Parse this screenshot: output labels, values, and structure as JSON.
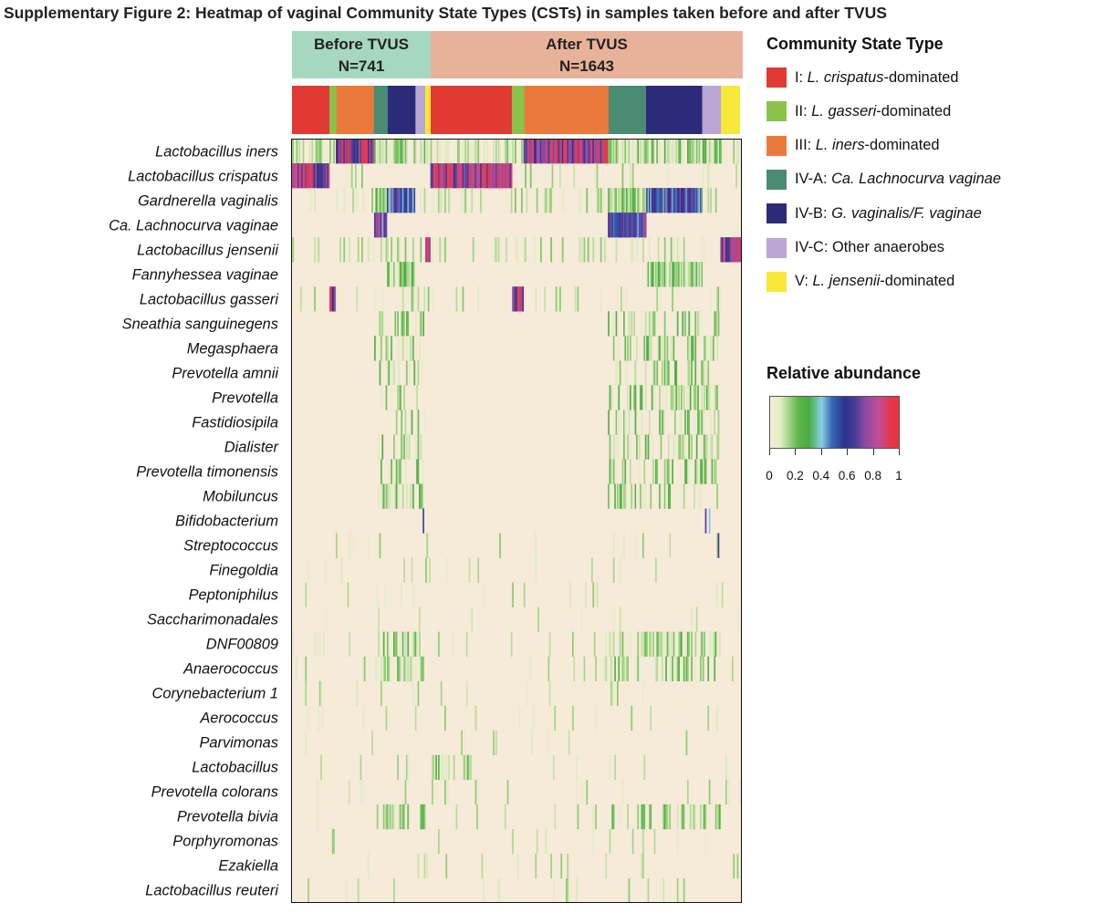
{
  "title": "Supplementary Figure 2: Heatmap of vaginal Community State Types (CSTs) in samples taken before and after TVUS",
  "groups": {
    "before": {
      "label": "Before TVUS",
      "n": "N=741",
      "color": "#a6d7bf"
    },
    "after": {
      "label": "After TVUS",
      "n": "N=1643",
      "color": "#e8b29a"
    }
  },
  "legend": {
    "title": "Community State Type",
    "items": [
      {
        "id": "I",
        "prefix": "I: ",
        "italic": "L. crispatus",
        "suffix": "-dominated",
        "color": "#e03a33"
      },
      {
        "id": "II",
        "prefix": "II: ",
        "italic": "L. gasseri",
        "suffix": "-dominated",
        "color": "#8bc34a"
      },
      {
        "id": "III",
        "prefix": "III: ",
        "italic": "L. iners",
        "suffix": "-dominated",
        "color": "#ea7a3b"
      },
      {
        "id": "IV-A",
        "prefix": "IV-A: ",
        "italic": "Ca. Lachnocurva vaginae",
        "suffix": "",
        "color": "#4c8b73"
      },
      {
        "id": "IV-B",
        "prefix": "IV-B: ",
        "italic": "G. vaginalis/F. vaginae",
        "suffix": "",
        "color": "#2c2b7a"
      },
      {
        "id": "IV-C",
        "prefix": "IV-C: ",
        "italic": "",
        "suffix": "Other anaerobes",
        "color": "#b9a6d4"
      },
      {
        "id": "V",
        "prefix": "V: ",
        "italic": "L. jensenii",
        "suffix": "-dominated",
        "color": "#f7e83a"
      }
    ]
  },
  "colorbar": {
    "title": "Relative abundance",
    "tick_labels": [
      "0",
      "0.2",
      "0.4",
      "0.6",
      "0.8",
      "1"
    ]
  },
  "chart_data": {
    "type": "heatmap",
    "x_axis": "samples (grouped by TVUS timing, ordered by CST)",
    "value_range": [
      0,
      1
    ],
    "taxa": [
      "Lactobacillus iners",
      "Lactobacillus crispatus",
      "Gardnerella vaginalis",
      "Ca. Lachnocurva vaginae",
      "Lactobacillus jensenii",
      "Fannyhessea vaginae",
      "Lactobacillus gasseri",
      "Sneathia sanguinegens",
      "Megasphaera",
      "Prevotella amnii",
      "Prevotella",
      "Fastidiosipila",
      "Dialister",
      "Prevotella timonensis",
      "Mobiluncus",
      "Bifidobacterium",
      "Streptococcus",
      "Finegoldia",
      "Peptoniphilus",
      "Saccharimonadales",
      "DNF00809",
      "Anaerococcus",
      "Corynebacterium 1",
      "Aerococcus",
      "Parvimonas",
      "Lactobacillus",
      "Prevotella colorans",
      "Prevotella bivia",
      "Porphyromonas",
      "Ezakiella",
      "Lactobacillus reuteri"
    ],
    "groups": [
      {
        "name": "Before TVUS",
        "n": 741,
        "cst_blocks": [
          {
            "cst": "I",
            "fraction": 0.27
          },
          {
            "cst": "II",
            "fraction": 0.05
          },
          {
            "cst": "III",
            "fraction": 0.27
          },
          {
            "cst": "IV-A",
            "fraction": 0.1
          },
          {
            "cst": "IV-B",
            "fraction": 0.2
          },
          {
            "cst": "IV-C",
            "fraction": 0.07
          },
          {
            "cst": "V",
            "fraction": 0.04
          }
        ]
      },
      {
        "name": "After TVUS",
        "n": 1643,
        "cst_blocks": [
          {
            "cst": "I",
            "fraction": 0.26
          },
          {
            "cst": "II",
            "fraction": 0.04
          },
          {
            "cst": "III",
            "fraction": 0.27
          },
          {
            "cst": "IV-A",
            "fraction": 0.12
          },
          {
            "cst": "IV-B",
            "fraction": 0.18
          },
          {
            "cst": "IV-C",
            "fraction": 0.06
          },
          {
            "cst": "V",
            "fraction": 0.06
          }
        ]
      }
    ],
    "dominant_taxon_by_cst": {
      "I": "Lactobacillus crispatus",
      "II": "Lactobacillus gasseri",
      "III": "Lactobacillus iners",
      "IV-A": "Ca. Lachnocurva vaginae",
      "IV-B": "Gardnerella vaginalis",
      "V": "Lactobacillus jensenii"
    }
  }
}
